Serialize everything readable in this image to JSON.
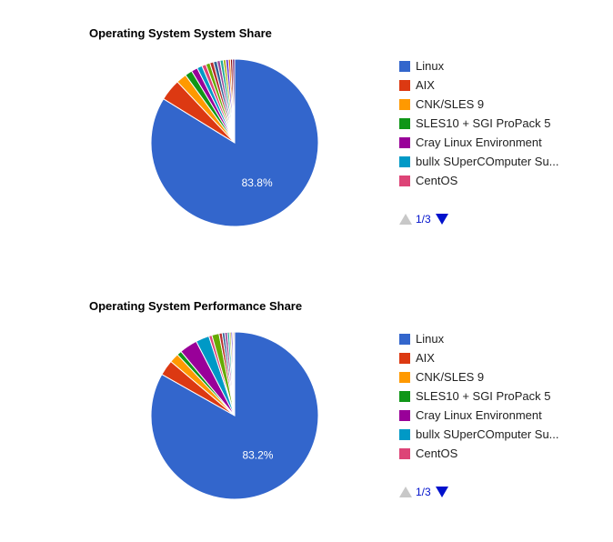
{
  "colors": {
    "linux": "#3366cc",
    "aix": "#dc3912",
    "cnk": "#ff9900",
    "sles": "#109618",
    "cray": "#990099",
    "bullx": "#0099c6",
    "centos": "#dd4477",
    "s8": "#66aa00",
    "s9": "#b82e2e",
    "s10": "#316395",
    "s11": "#994499",
    "s12": "#22aa99",
    "s13": "#aaaa11",
    "s14": "#6633cc",
    "s15": "#e67300",
    "s16": "#8b0707",
    "s17": "#651067"
  },
  "pager": {
    "label": "1/3"
  },
  "chart_data": [
    {
      "type": "pie",
      "title": "Operating System System Share",
      "slice_label": "83.8%",
      "legend": [
        "Linux",
        "AIX",
        "CNK/SLES 9",
        "SLES10 + SGI ProPack 5",
        "Cray Linux Environment",
        "bullx SUperCOmputer Su...",
        "CentOS"
      ],
      "slices": [
        {
          "name": "Linux",
          "value": 83.8,
          "color": "#3366cc"
        },
        {
          "name": "AIX",
          "value": 4.2,
          "color": "#dc3912"
        },
        {
          "name": "CNK/SLES 9",
          "value": 2.0,
          "color": "#ff9900"
        },
        {
          "name": "SLES10 + SGI ProPack 5",
          "value": 1.4,
          "color": "#109618"
        },
        {
          "name": "Cray Linux Environment",
          "value": 1.2,
          "color": "#990099"
        },
        {
          "name": "bullx SUperCOmputer Su...",
          "value": 1.0,
          "color": "#0099c6"
        },
        {
          "name": "CentOS",
          "value": 0.8,
          "color": "#dd4477"
        },
        {
          "name": "",
          "value": 0.8,
          "color": "#66aa00"
        },
        {
          "name": "",
          "value": 0.7,
          "color": "#b82e2e"
        },
        {
          "name": "",
          "value": 0.7,
          "color": "#316395"
        },
        {
          "name": "",
          "value": 0.6,
          "color": "#994499"
        },
        {
          "name": "",
          "value": 0.6,
          "color": "#22aa99"
        },
        {
          "name": "",
          "value": 0.5,
          "color": "#aaaa11"
        },
        {
          "name": "",
          "value": 0.5,
          "color": "#6633cc"
        },
        {
          "name": "",
          "value": 0.4,
          "color": "#e67300"
        },
        {
          "name": "",
          "value": 0.4,
          "color": "#8b0707"
        },
        {
          "name": "",
          "value": 0.4,
          "color": "#651067"
        }
      ]
    },
    {
      "type": "pie",
      "title": "Operating System Performance Share",
      "slice_label": "83.2%",
      "legend": [
        "Linux",
        "AIX",
        "CNK/SLES 9",
        "SLES10 + SGI ProPack 5",
        "Cray Linux Environment",
        "bullx SUperCOmputer Su...",
        "CentOS"
      ],
      "slices": [
        {
          "name": "Linux",
          "value": 83.2,
          "color": "#3366cc"
        },
        {
          "name": "AIX",
          "value": 3.0,
          "color": "#dc3912"
        },
        {
          "name": "CNK/SLES 9",
          "value": 1.8,
          "color": "#ff9900"
        },
        {
          "name": "SLES10 + SGI ProPack 5",
          "value": 0.9,
          "color": "#109618"
        },
        {
          "name": "Cray Linux Environment",
          "value": 3.5,
          "color": "#990099"
        },
        {
          "name": "bullx SUperCOmputer Su...",
          "value": 2.6,
          "color": "#0099c6"
        },
        {
          "name": "CentOS",
          "value": 0.6,
          "color": "#dd4477"
        },
        {
          "name": "",
          "value": 1.4,
          "color": "#66aa00"
        },
        {
          "name": "",
          "value": 0.6,
          "color": "#b82e2e"
        },
        {
          "name": "",
          "value": 0.5,
          "color": "#316395"
        },
        {
          "name": "",
          "value": 0.5,
          "color": "#994499"
        },
        {
          "name": "",
          "value": 0.4,
          "color": "#22aa99"
        },
        {
          "name": "",
          "value": 0.3,
          "color": "#aaaa11"
        },
        {
          "name": "",
          "value": 0.3,
          "color": "#6633cc"
        },
        {
          "name": "",
          "value": 0.2,
          "color": "#e67300"
        },
        {
          "name": "",
          "value": 0.2,
          "color": "#8b0707"
        }
      ]
    }
  ]
}
